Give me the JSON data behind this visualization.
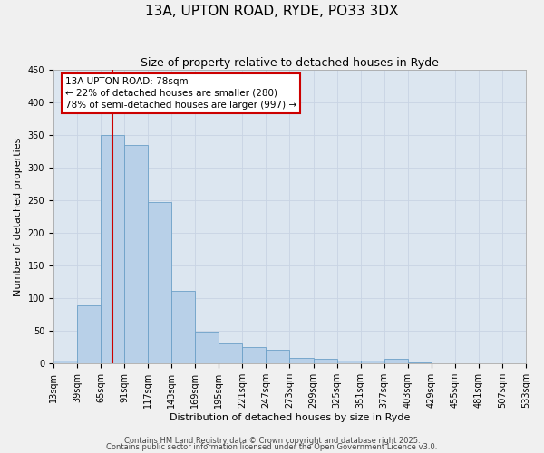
{
  "title1": "13A, UPTON ROAD, RYDE, PO33 3DX",
  "title2": "Size of property relative to detached houses in Ryde",
  "xlabel": "Distribution of detached houses by size in Ryde",
  "ylabel": "Number of detached properties",
  "bar_values": [
    5,
    89,
    350,
    335,
    247,
    112,
    49,
    31,
    25,
    21,
    9,
    8,
    4,
    4,
    8,
    2,
    1,
    1,
    1,
    1
  ],
  "categories": [
    "13sqm",
    "39sqm",
    "65sqm",
    "91sqm",
    "117sqm",
    "143sqm",
    "169sqm",
    "195sqm",
    "221sqm",
    "247sqm",
    "273sqm",
    "299sqm",
    "325sqm",
    "351sqm",
    "377sqm",
    "403sqm",
    "429sqm",
    "455sqm",
    "481sqm",
    "507sqm",
    "533sqm"
  ],
  "bar_color": "#b8d0e8",
  "bar_edge_color": "#6ca0c8",
  "vline_color": "#cc0000",
  "vline_x": 2.5,
  "annotation_line1": "13A UPTON ROAD: 78sqm",
  "annotation_line2": "← 22% of detached houses are smaller (280)",
  "annotation_line3": "78% of semi-detached houses are larger (997) →",
  "ylim": [
    0,
    450
  ],
  "yticks": [
    0,
    50,
    100,
    150,
    200,
    250,
    300,
    350,
    400,
    450
  ],
  "grid_color": "#c8d4e4",
  "bg_color": "#dce6f0",
  "fig_bg_color": "#f0f0f0",
  "footer1": "Contains HM Land Registry data © Crown copyright and database right 2025.",
  "footer2": "Contains public sector information licensed under the Open Government Licence v3.0.",
  "title_fontsize": 11,
  "subtitle_fontsize": 9,
  "axis_label_fontsize": 8,
  "tick_fontsize": 7,
  "annotation_fontsize": 7.5,
  "footer_fontsize": 6
}
